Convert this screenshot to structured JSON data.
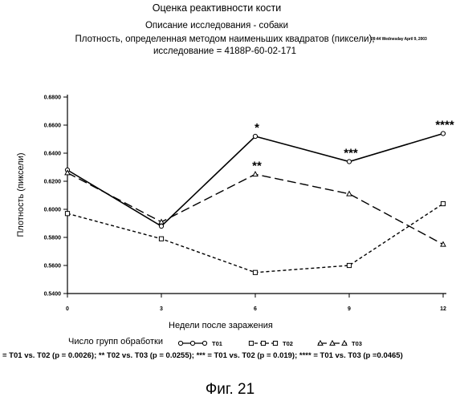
{
  "header": {
    "title": "Оценка реактивности кости",
    "subtitle1": "Описание исследования - собаки",
    "subtitle2": "Плотность, определенная методом наименьших квадратов (пиксели), исследование = 4188P-60-02-171",
    "timestamp": "09:44 Wednesday April 9, 2003"
  },
  "legend": {
    "title": "Число групп обработки"
  },
  "footnote": "= T01 vs. T02 (p = 0.0026); ** T02 vs. T03 (p = 0.0255); *** = T01 vs. T02 (p = 0.019); **** = T01 vs. T03 (p =0.0465)",
  "figure_label": "Фиг. 21",
  "chart_data": {
    "type": "line",
    "xlabel": "Недели после заражения",
    "ylabel": "Плотность (пиксели)",
    "x": [
      0,
      3,
      6,
      9,
      12
    ],
    "x_tick_labels": [
      "0",
      "3",
      "6",
      "9",
      "12"
    ],
    "ylim": [
      0.54,
      0.68
    ],
    "y_ticks": [
      0.54,
      0.56,
      0.58,
      0.6,
      0.62,
      0.64,
      0.66,
      0.68
    ],
    "y_tick_labels": [
      "0.5400",
      "0.5600",
      "0.5800",
      "0.6000",
      "0.6200",
      "0.6400",
      "0.6600",
      "0.6800"
    ],
    "grid": false,
    "legend_position": "bottom",
    "series": [
      {
        "name": "T01",
        "values": [
          0.628,
          0.588,
          0.652,
          0.634,
          0.654
        ],
        "line": "solid",
        "marker": "circle"
      },
      {
        "name": "T02",
        "values": [
          0.597,
          0.579,
          0.555,
          0.56,
          0.604
        ],
        "line": "dotted",
        "marker": "square"
      },
      {
        "name": "T03",
        "values": [
          0.626,
          0.591,
          0.625,
          0.611,
          0.575
        ],
        "line": "dashed",
        "marker": "triangle"
      }
    ],
    "annotations": [
      {
        "text": "*",
        "x": 6,
        "y": 0.652
      },
      {
        "text": "**",
        "x": 6,
        "y": 0.625
      },
      {
        "text": "***",
        "x": 9,
        "y": 0.634
      },
      {
        "text": "****",
        "x": 12,
        "y": 0.654
      }
    ]
  }
}
